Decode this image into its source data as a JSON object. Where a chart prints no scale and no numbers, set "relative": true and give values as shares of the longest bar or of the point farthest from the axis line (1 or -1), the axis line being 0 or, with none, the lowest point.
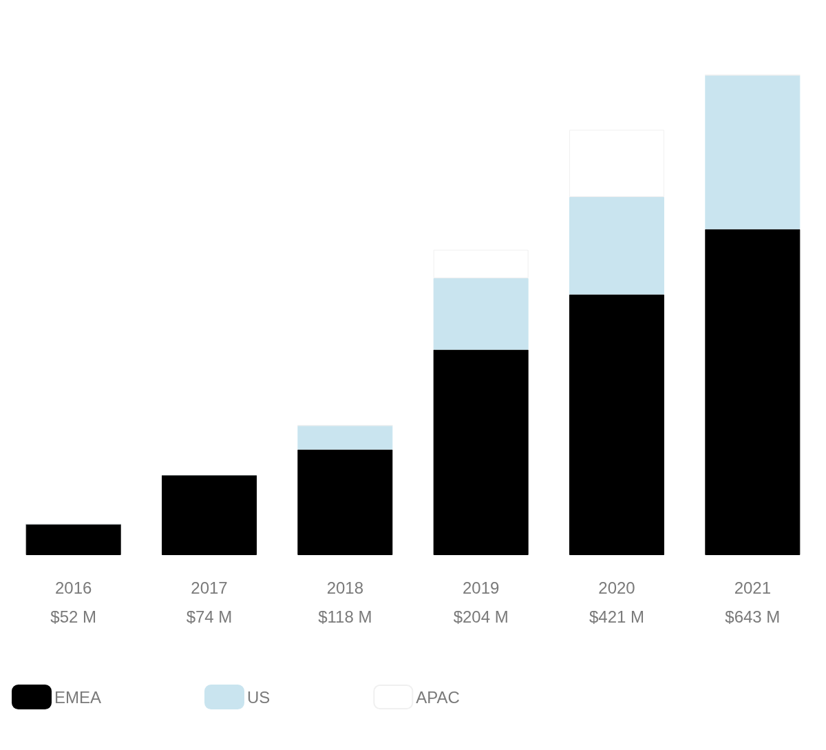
{
  "chart_data": {
    "type": "bar",
    "stacked": true,
    "relative": true,
    "legend": "bottom left",
    "categories": [
      "2016\n$52 M",
      "2017\n$74 M",
      "2018\n$118 M",
      "2019\n$204 M",
      "2020\n$421 M",
      "2021\n$643 M"
    ],
    "series": [
      {
        "name": "EMEA",
        "color": "#000000",
        "values": [
          0.065,
          0.167,
          0.22,
          0.428,
          0.543,
          0.679
        ]
      },
      {
        "name": "US",
        "color": "#c9e4ef",
        "values": [
          0,
          0,
          0.05,
          0.149,
          0.203,
          0.321
        ]
      },
      {
        "name": "APAC",
        "color": "#ffffff",
        "values": [
          0,
          0,
          0,
          0.059,
          0.14,
          0
        ]
      }
    ]
  }
}
